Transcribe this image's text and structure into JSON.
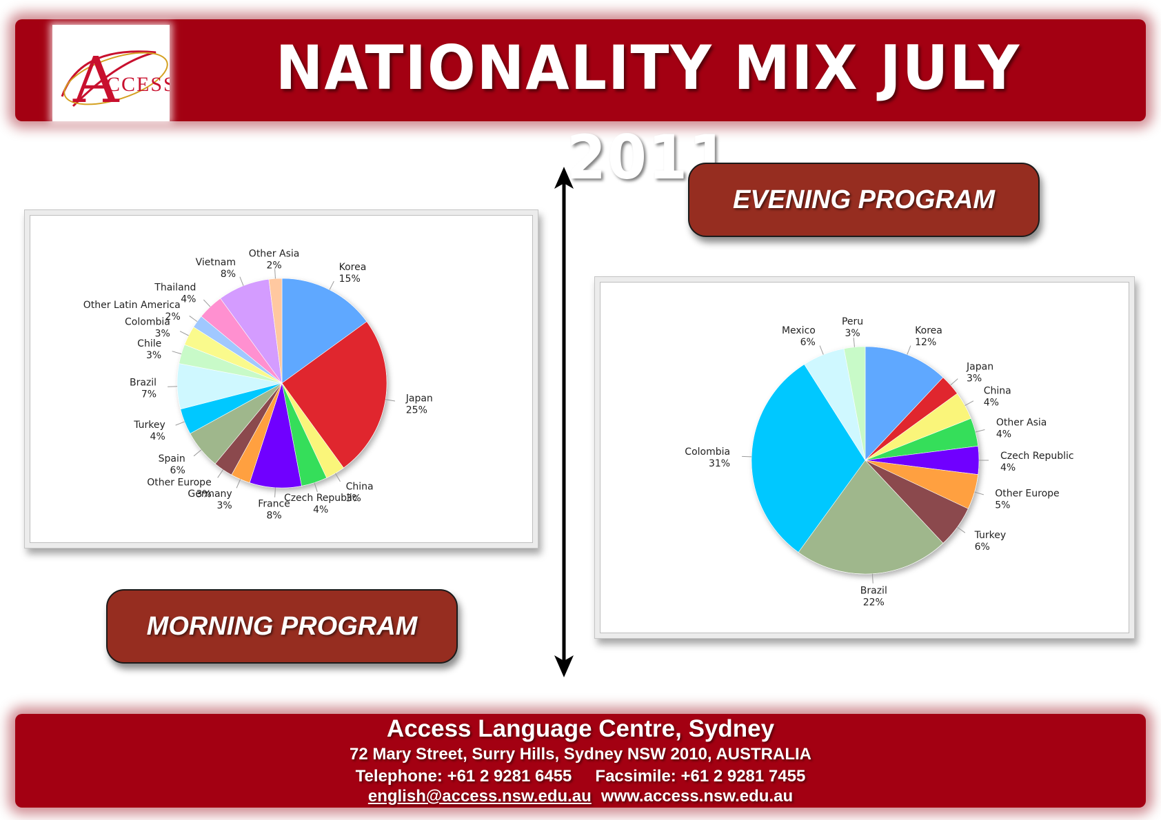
{
  "header": {
    "title": "NATIONALITY MIX JULY 2011",
    "logo_text": "CCESS",
    "logo_initial": "A"
  },
  "labels": {
    "evening": "EVENING PROGRAM",
    "morning": "MORNING PROGRAM"
  },
  "colors": {
    "banner": "#a30012",
    "label_bg": "#962d20"
  },
  "footer": {
    "title": "Access Language Centre, Sydney",
    "address": "72 Mary Street, Surry Hills, Sydney NSW 2010, AUSTRALIA",
    "telephone": "Telephone: +61 2 9281 6455",
    "facsimile": "Facsimile: +61 2 9281 7455",
    "email": "english@access.nsw.edu.au",
    "website": "www.access.nsw.edu.au"
  },
  "chart_data": [
    {
      "type": "pie",
      "program": "morning",
      "slices": [
        {
          "label": "Korea",
          "value": 15,
          "display": "15%",
          "color": "#5ea8ff"
        },
        {
          "label": "Japan",
          "value": 25,
          "display": "25%",
          "color": "#e0282e"
        },
        {
          "label": "China",
          "value": 3,
          "display": "3%",
          "color": "#faf57a"
        },
        {
          "label": "Czech Republic",
          "value": 4,
          "display": "4%",
          "color": "#36de5a"
        },
        {
          "label": "France",
          "value": 8,
          "display": "8%",
          "color": "#7000ff"
        },
        {
          "label": "Germany",
          "value": 3,
          "display": "3%",
          "color": "#ffa040"
        },
        {
          "label": "Other Europe",
          "value": 3,
          "display": "3%",
          "color": "#8b4a4e"
        },
        {
          "label": "Spain",
          "value": 6,
          "display": "6%",
          "color": "#9fb78c"
        },
        {
          "label": "Turkey",
          "value": 4,
          "display": "4%",
          "color": "#00c8ff"
        },
        {
          "label": "Brazil",
          "value": 7,
          "display": "7%",
          "color": "#cff8ff"
        },
        {
          "label": "Chile",
          "value": 3,
          "display": "3%",
          "color": "#c8fac8"
        },
        {
          "label": "Colombia",
          "value": 3,
          "display": "3%",
          "color": "#fafa8c"
        },
        {
          "label": "Other Latin America",
          "value": 2,
          "display": "2%",
          "color": "#a0c8ff"
        },
        {
          "label": "Thailand",
          "value": 4,
          "display": "4%",
          "color": "#ff90d0"
        },
        {
          "label": "Vietnam",
          "value": 8,
          "display": "8%",
          "color": "#d49cff"
        },
        {
          "label": "Other Asia",
          "value": 2,
          "display": "2%",
          "color": "#ffc8a0"
        }
      ]
    },
    {
      "type": "pie",
      "program": "evening",
      "slices": [
        {
          "label": "Korea",
          "value": 12,
          "display": "12%",
          "color": "#5ea8ff"
        },
        {
          "label": "Japan",
          "value": 3,
          "display": "3%",
          "color": "#e0282e"
        },
        {
          "label": "China",
          "value": 4,
          "display": "4%",
          "color": "#faf57a"
        },
        {
          "label": "Other Asia",
          "value": 4,
          "display": "4%",
          "color": "#36de5a"
        },
        {
          "label": "Czech Republic",
          "value": 4,
          "display": "4%",
          "color": "#7000ff"
        },
        {
          "label": "Other Europe",
          "value": 5,
          "display": "5%",
          "color": "#ffa040"
        },
        {
          "label": "Turkey",
          "value": 6,
          "display": "6%",
          "color": "#8b4a4e"
        },
        {
          "label": "Brazil",
          "value": 22,
          "display": "22%",
          "color": "#9fb78c"
        },
        {
          "label": "Colombia",
          "value": 31,
          "display": "31%",
          "color": "#00c8ff"
        },
        {
          "label": "Mexico",
          "value": 6,
          "display": "6%",
          "color": "#cff8ff"
        },
        {
          "label": "Peru",
          "value": 3,
          "display": "3%",
          "color": "#c8fac8"
        }
      ]
    }
  ]
}
